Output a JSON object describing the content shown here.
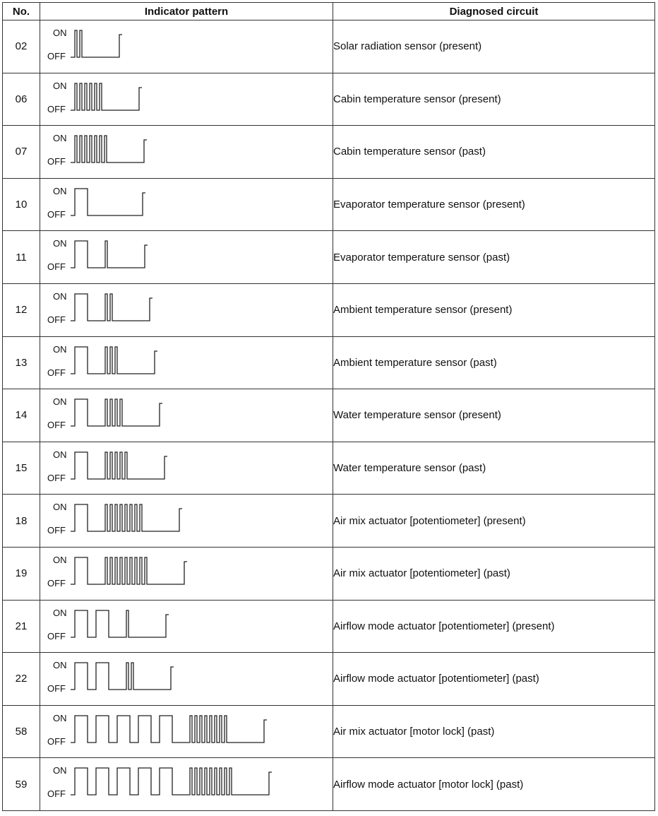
{
  "table": {
    "headers": {
      "no": "No.",
      "pattern": "Indicator pattern",
      "circuit": "Diagnosed circuit"
    },
    "on_label": "ON",
    "off_label": "OFF",
    "rows": [
      {
        "no": "02",
        "circuit": "Solar radiation sensor (present)",
        "pattern": [
          0,
          0,
          2,
          0,
          0,
          0,
          0
        ]
      },
      {
        "no": "06",
        "circuit": "Cabin temperature sensor (present)",
        "pattern": [
          0,
          0,
          6,
          0,
          0,
          0,
          0
        ]
      },
      {
        "no": "07",
        "circuit": "Cabin temperature sensor (past)",
        "pattern": [
          0,
          0,
          7,
          0,
          0,
          0,
          0
        ]
      },
      {
        "no": "10",
        "circuit": "Evaporator temperature sensor (present)",
        "pattern": [
          1,
          0,
          0,
          0,
          0,
          0,
          0
        ]
      },
      {
        "no": "11",
        "circuit": "Evaporator temperature sensor (past)",
        "pattern": [
          1,
          0,
          1,
          0,
          0,
          0,
          0
        ]
      },
      {
        "no": "12",
        "circuit": "Ambient temperature sensor (present)",
        "pattern": [
          1,
          0,
          2,
          0,
          0,
          0,
          0
        ]
      },
      {
        "no": "13",
        "circuit": "Ambient temperature sensor (past)",
        "pattern": [
          1,
          0,
          3,
          0,
          0,
          0,
          0
        ]
      },
      {
        "no": "14",
        "circuit": "Water temperature sensor (present)",
        "pattern": [
          1,
          0,
          4,
          0,
          0,
          0,
          0
        ]
      },
      {
        "no": "15",
        "circuit": "Water temperature sensor (past)",
        "pattern": [
          1,
          0,
          5,
          0,
          0,
          0,
          0
        ]
      },
      {
        "no": "18",
        "circuit": "Air mix actuator [potentiometer] (present)",
        "pattern": [
          1,
          0,
          8,
          0,
          0,
          0,
          0
        ]
      },
      {
        "no": "19",
        "circuit": "Air mix actuator [potentiometer] (past)",
        "pattern": [
          1,
          0,
          9,
          0,
          0,
          0,
          0
        ]
      },
      {
        "no": "21",
        "circuit": "Airflow mode actuator [potentiometer] (present)",
        "pattern": [
          2,
          0,
          1,
          0,
          0,
          0,
          0
        ]
      },
      {
        "no": "22",
        "circuit": "Airflow mode actuator [potentiometer] (past)",
        "pattern": [
          2,
          0,
          2,
          0,
          0,
          0,
          0
        ]
      },
      {
        "no": "58",
        "circuit": "Air mix actuator [motor lock] (past)",
        "pattern": [
          5,
          0,
          8,
          0,
          0,
          0,
          0
        ]
      },
      {
        "no": "59",
        "circuit": "Airflow mode actuator [motor lock] (past)",
        "pattern": [
          5,
          0,
          9,
          0,
          0,
          0,
          0
        ]
      }
    ]
  }
}
